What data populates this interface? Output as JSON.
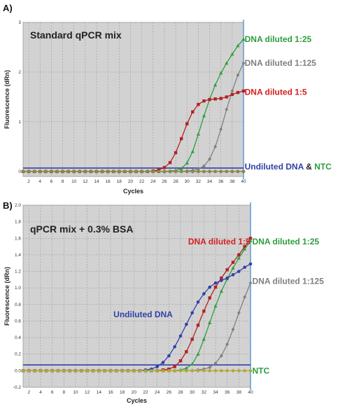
{
  "chart_data": [
    {
      "type": "line",
      "panel_label": "A)",
      "title": "Standard qPCR mix",
      "xlabel": "Cycles",
      "ylabel": "Fluorescence (dRn)",
      "xlim": [
        1,
        40
      ],
      "ylim": [
        -0.1,
        3
      ],
      "x_ticks": [
        "2",
        "4",
        "6",
        "8",
        "10",
        "12",
        "14",
        "16",
        "18",
        "20",
        "22",
        "24",
        "26",
        "28",
        "30",
        "32",
        "34",
        "36",
        "38",
        "40"
      ],
      "y_ticks": [
        "0",
        "1",
        "2",
        "3"
      ],
      "grid": true,
      "threshold": 0.07,
      "threshold_color": "#3340a8",
      "series": [
        {
          "name": "DNA diluted 1:25",
          "color": "#2e9d3e",
          "marker": "triangle",
          "x": [
            1,
            2,
            3,
            4,
            5,
            6,
            7,
            8,
            9,
            10,
            11,
            12,
            13,
            14,
            15,
            16,
            17,
            18,
            19,
            20,
            21,
            22,
            23,
            24,
            25,
            26,
            27,
            28,
            29,
            30,
            31,
            32,
            33,
            34,
            35,
            36,
            37,
            38,
            39,
            40
          ],
          "values": [
            0,
            0,
            0,
            0,
            0,
            0,
            0,
            0,
            0,
            0,
            0,
            0,
            0,
            0,
            0,
            0,
            0,
            0,
            0,
            0,
            0,
            0,
            0,
            0,
            0,
            0,
            0.01,
            0.02,
            0.06,
            0.17,
            0.4,
            0.75,
            1.12,
            1.45,
            1.74,
            1.98,
            2.18,
            2.36,
            2.53,
            2.66
          ]
        },
        {
          "name": "DNA diluted 1:125",
          "color": "#808080",
          "marker": "diamond",
          "x": [
            1,
            2,
            3,
            4,
            5,
            6,
            7,
            8,
            9,
            10,
            11,
            12,
            13,
            14,
            15,
            16,
            17,
            18,
            19,
            20,
            21,
            22,
            23,
            24,
            25,
            26,
            27,
            28,
            29,
            30,
            31,
            32,
            33,
            34,
            35,
            36,
            37,
            38,
            39,
            40
          ],
          "values": [
            0,
            0,
            0,
            0,
            0,
            0,
            0,
            0,
            0,
            0,
            0,
            0,
            0,
            0,
            0,
            0,
            0,
            0,
            0,
            0,
            0,
            0,
            0,
            0,
            0,
            0,
            0,
            0,
            0,
            0.01,
            0.02,
            0.05,
            0.11,
            0.25,
            0.5,
            0.85,
            1.25,
            1.62,
            1.94,
            2.18
          ]
        },
        {
          "name": "DNA diluted 1:5",
          "color": "#b22222",
          "marker": "square",
          "x": [
            1,
            2,
            3,
            4,
            5,
            6,
            7,
            8,
            9,
            10,
            11,
            12,
            13,
            14,
            15,
            16,
            17,
            18,
            19,
            20,
            21,
            22,
            23,
            24,
            25,
            26,
            27,
            28,
            29,
            30,
            31,
            32,
            33,
            34,
            35,
            36,
            37,
            38,
            39,
            40
          ],
          "values": [
            0,
            0,
            0,
            0,
            0,
            0,
            0,
            0,
            0,
            0,
            0,
            0,
            0,
            0,
            0,
            0,
            0,
            0,
            0,
            0,
            0,
            0,
            0,
            0.01,
            0.03,
            0.08,
            0.18,
            0.38,
            0.66,
            0.96,
            1.2,
            1.35,
            1.42,
            1.45,
            1.46,
            1.47,
            1.5,
            1.55,
            1.59,
            1.62
          ]
        },
        {
          "name": "Undiluted DNA",
          "color": "#3340a8",
          "marker": "circle",
          "x": [
            1,
            2,
            3,
            4,
            5,
            6,
            7,
            8,
            9,
            10,
            11,
            12,
            13,
            14,
            15,
            16,
            17,
            18,
            19,
            20,
            21,
            22,
            23,
            24,
            25,
            26,
            27,
            28,
            29,
            30,
            31,
            32,
            33,
            34,
            35,
            36,
            37,
            38,
            39,
            40
          ],
          "values": [
            0,
            0,
            0,
            0,
            0,
            0,
            0,
            0,
            0,
            0,
            0,
            0,
            0,
            0,
            0,
            0,
            0,
            0,
            0,
            0,
            0,
            0,
            0,
            0,
            0,
            0,
            0,
            0,
            0,
            0,
            0,
            0,
            0,
            0,
            0,
            0,
            0,
            0,
            0,
            0
          ]
        },
        {
          "name": "NTC",
          "color": "#8c8a3a",
          "marker": "circle",
          "x": [
            1,
            2,
            3,
            4,
            5,
            6,
            7,
            8,
            9,
            10,
            11,
            12,
            13,
            14,
            15,
            16,
            17,
            18,
            19,
            20,
            21,
            22,
            23,
            24,
            25,
            26,
            27,
            28,
            29,
            30,
            31,
            32,
            33,
            34,
            35,
            36,
            37,
            38,
            39,
            40
          ],
          "values": [
            0,
            0,
            0,
            0,
            0,
            0,
            0,
            0,
            0,
            0,
            0,
            0,
            0,
            0,
            0,
            0,
            0,
            0,
            0,
            0,
            0,
            0,
            0,
            0,
            0,
            0,
            0,
            0,
            0,
            0,
            0,
            0,
            0,
            0,
            0,
            0,
            0,
            0,
            0,
            0
          ]
        }
      ],
      "annotations": [
        {
          "parts": [
            {
              "text": "DNA diluted 1:25",
              "color": "#2e9d3e"
            }
          ],
          "x": 40.2,
          "y": 2.66
        },
        {
          "parts": [
            {
              "text": "DNA diluted 1:125",
              "color": "#808080"
            }
          ],
          "x": 40.2,
          "y": 2.18
        },
        {
          "parts": [
            {
              "text": "DNA diluted 1:5",
              "color": "#d42020"
            }
          ],
          "x": 40.2,
          "y": 1.6
        },
        {
          "parts": [
            {
              "text": "Undiluted DNA",
              "color": "#3340a8"
            },
            {
              "text": " & ",
              "color": "#222222"
            },
            {
              "text": "NTC",
              "color": "#2e9d3e"
            }
          ],
          "x": 40.2,
          "y": 0.1
        }
      ]
    },
    {
      "type": "line",
      "panel_label": "B)",
      "title": "qPCR mix + 0.3% BSA",
      "xlabel": "Cycles",
      "ylabel": "Fluorescence (dRn)",
      "xlim": [
        1,
        40
      ],
      "ylim": [
        -0.2,
        2.0
      ],
      "x_ticks": [
        "2",
        "4",
        "6",
        "8",
        "10",
        "12",
        "14",
        "16",
        "18",
        "20",
        "22",
        "24",
        "26",
        "28",
        "30",
        "32",
        "34",
        "36",
        "38",
        "40"
      ],
      "y_ticks": [
        "-0.2",
        "0.0",
        "0.2",
        "0.4",
        "0.6",
        "0.8",
        "1.0",
        "1.2",
        "1.4",
        "1.6",
        "1.8",
        "2.0"
      ],
      "grid": true,
      "threshold": 0.07,
      "threshold_color": "#3340a8",
      "series": [
        {
          "name": "DNA diluted 1:5",
          "color": "#b22222",
          "marker": "square",
          "x": [
            1,
            2,
            3,
            4,
            5,
            6,
            7,
            8,
            9,
            10,
            11,
            12,
            13,
            14,
            15,
            16,
            17,
            18,
            19,
            20,
            21,
            22,
            23,
            24,
            25,
            26,
            27,
            28,
            29,
            30,
            31,
            32,
            33,
            34,
            35,
            36,
            37,
            38,
            39,
            40
          ],
          "values": [
            0,
            0,
            0,
            0,
            0,
            0,
            0,
            0,
            0,
            0,
            0,
            0,
            0,
            0,
            0,
            0,
            0,
            0,
            0,
            0,
            0,
            0,
            0,
            0,
            0.01,
            0.02,
            0.05,
            0.12,
            0.23,
            0.38,
            0.55,
            0.72,
            0.88,
            1.01,
            1.12,
            1.22,
            1.31,
            1.4,
            1.5,
            1.6
          ]
        },
        {
          "name": "DNA diluted 1:25",
          "color": "#2e9d3e",
          "marker": "triangle",
          "x": [
            1,
            2,
            3,
            4,
            5,
            6,
            7,
            8,
            9,
            10,
            11,
            12,
            13,
            14,
            15,
            16,
            17,
            18,
            19,
            20,
            21,
            22,
            23,
            24,
            25,
            26,
            27,
            28,
            29,
            30,
            31,
            32,
            33,
            34,
            35,
            36,
            37,
            38,
            39,
            40
          ],
          "values": [
            0,
            0,
            0,
            0,
            0,
            0,
            0,
            0,
            0,
            0,
            0,
            0,
            0,
            0,
            0,
            0,
            0,
            0,
            0,
            0,
            0,
            0,
            0,
            0,
            0,
            0,
            0,
            0.01,
            0.03,
            0.08,
            0.2,
            0.38,
            0.58,
            0.78,
            0.96,
            1.11,
            1.24,
            1.36,
            1.47,
            1.57
          ]
        },
        {
          "name": "Undiluted DNA",
          "color": "#3340a8",
          "marker": "circle",
          "x": [
            1,
            2,
            3,
            4,
            5,
            6,
            7,
            8,
            9,
            10,
            11,
            12,
            13,
            14,
            15,
            16,
            17,
            18,
            19,
            20,
            21,
            22,
            23,
            24,
            25,
            26,
            27,
            28,
            29,
            30,
            31,
            32,
            33,
            34,
            35,
            36,
            37,
            38,
            39,
            40
          ],
          "values": [
            0,
            0,
            0,
            0,
            0,
            0,
            0,
            0,
            0,
            0,
            0,
            0,
            0,
            0,
            0,
            0,
            0,
            0,
            0,
            0,
            0,
            0.01,
            0.02,
            0.05,
            0.1,
            0.18,
            0.29,
            0.42,
            0.56,
            0.7,
            0.83,
            0.93,
            1.01,
            1.06,
            1.09,
            1.12,
            1.16,
            1.2,
            1.25,
            1.29
          ]
        },
        {
          "name": "DNA diluted 1:125",
          "color": "#808080",
          "marker": "diamond",
          "x": [
            1,
            2,
            3,
            4,
            5,
            6,
            7,
            8,
            9,
            10,
            11,
            12,
            13,
            14,
            15,
            16,
            17,
            18,
            19,
            20,
            21,
            22,
            23,
            24,
            25,
            26,
            27,
            28,
            29,
            30,
            31,
            32,
            33,
            34,
            35,
            36,
            37,
            38,
            39,
            40
          ],
          "values": [
            0,
            0,
            0,
            0,
            0,
            0,
            0,
            0,
            0,
            0,
            0,
            0,
            0,
            0,
            0,
            0,
            0,
            0,
            0,
            0,
            0,
            0,
            0,
            0,
            0,
            0,
            0,
            0,
            0,
            0,
            0.01,
            0.02,
            0.04,
            0.09,
            0.18,
            0.32,
            0.5,
            0.7,
            0.89,
            1.06
          ]
        },
        {
          "name": "NTC",
          "color": "#b3a63a",
          "marker": "circle",
          "x": [
            1,
            2,
            3,
            4,
            5,
            6,
            7,
            8,
            9,
            10,
            11,
            12,
            13,
            14,
            15,
            16,
            17,
            18,
            19,
            20,
            21,
            22,
            23,
            24,
            25,
            26,
            27,
            28,
            29,
            30,
            31,
            32,
            33,
            34,
            35,
            36,
            37,
            38,
            39,
            40
          ],
          "values": [
            0,
            0,
            0,
            0,
            0,
            0,
            0,
            0,
            0,
            0,
            0,
            0,
            0,
            0,
            0,
            0,
            0,
            0,
            0,
            0,
            0,
            0,
            0,
            0,
            0,
            0,
            0,
            0,
            0,
            0,
            0,
            0,
            0,
            0,
            0,
            0,
            0,
            0,
            0,
            0
          ]
        }
      ],
      "annotations": [
        {
          "parts": [
            {
              "text": "DNA diluted 1:5",
              "color": "#d42020"
            }
          ],
          "x": 29.3,
          "y": 1.56
        },
        {
          "parts": [
            {
              "text": "DNA diluted 1:25",
              "color": "#2e9d3e"
            }
          ],
          "x": 40.3,
          "y": 1.56
        },
        {
          "parts": [
            {
              "text": "DNA diluted 1:125",
              "color": "#808080"
            }
          ],
          "x": 40.3,
          "y": 1.08
        },
        {
          "parts": [
            {
              "text": "Undiluted DNA",
              "color": "#3340a8"
            }
          ],
          "x": 16.5,
          "y": 0.68
        },
        {
          "parts": [
            {
              "text": "NTC",
              "color": "#2e9d3e"
            }
          ],
          "x": 40.3,
          "y": 0.0
        }
      ]
    }
  ]
}
